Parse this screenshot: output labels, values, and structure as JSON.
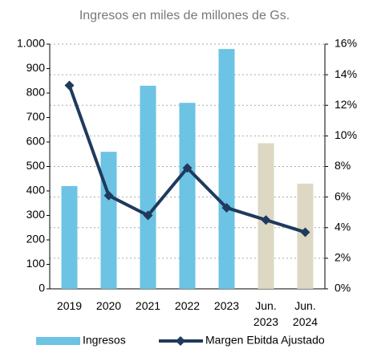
{
  "chart_data": {
    "type": "bar_line",
    "title": "Ingresos en miles de millones de Gs.",
    "categories": [
      "2019",
      "2020",
      "2021",
      "2022",
      "2023",
      "Jun. 2023",
      "Jun. 2024"
    ],
    "series": [
      {
        "name": "Ingresos",
        "type": "bar",
        "color": "#6cc3e4",
        "colors": [
          "#6cc3e4",
          "#6cc3e4",
          "#6cc3e4",
          "#6cc3e4",
          "#6cc3e4",
          "#ddd8c3",
          "#ddd8c3"
        ],
        "values": [
          420,
          560,
          830,
          760,
          980,
          595,
          430
        ]
      },
      {
        "name": "Margen Ebitda Ajustado",
        "type": "line",
        "axis": "y2",
        "color": "#1f3a5c",
        "values": [
          13.3,
          6.1,
          4.8,
          7.9,
          5.3,
          4.5,
          3.7
        ]
      }
    ],
    "ylim": [
      0,
      1000
    ],
    "yticks": [
      0,
      100,
      200,
      300,
      400,
      500,
      600,
      700,
      800,
      900,
      {
        "value": 1000,
        "label": "1.000"
      }
    ],
    "y2lim": [
      0,
      16
    ],
    "y2ticks": [
      {
        "value": 0,
        "label": "0%"
      },
      {
        "value": 2,
        "label": "2%"
      },
      {
        "value": 4,
        "label": "4%"
      },
      {
        "value": 6,
        "label": "6%"
      },
      {
        "value": 8,
        "label": "8%"
      },
      {
        "value": 10,
        "label": "10%"
      },
      {
        "value": 12,
        "label": "12%"
      },
      {
        "value": 14,
        "label": "14%"
      },
      {
        "value": 16,
        "label": "16%"
      }
    ],
    "grid": true,
    "legend": "bottom"
  }
}
